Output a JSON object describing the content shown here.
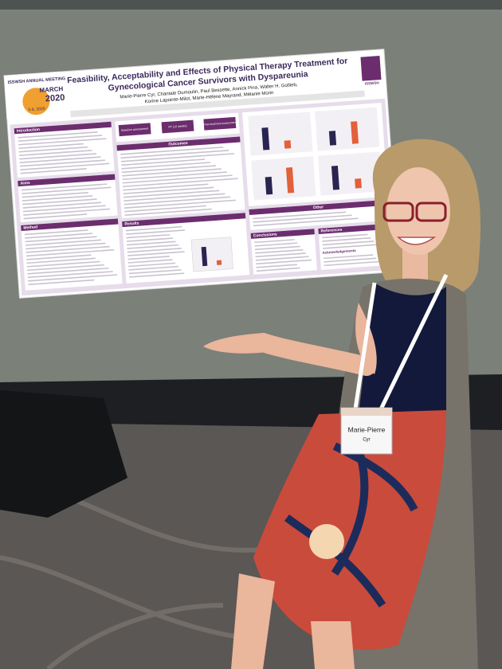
{
  "poster": {
    "meeting": "ISSWSH ANNUAL MEETING",
    "month": "MARCH",
    "year": "2020",
    "dates": "5-8, 2020",
    "logo": "ISSWSH",
    "title": [
      "Feasibility, Acceptability and Effects of Physical Therapy Treatment for",
      "Gynecological Cancer Survivors with Dyspareunia"
    ],
    "authors": [
      "Marie-Pierre Cyr, Chantale Dumoulin, Paul Bessette, Annick Pina, Walter H. Gotlieb,",
      "Korine Lapointe-Milot, Marie-Hélène Mayrand, Mélanie Morin"
    ],
    "sections": [
      "Introduction",
      "Aims",
      "Method",
      "Outcomes",
      "Results",
      "Other",
      "Conclusions",
      "References",
      "Acknowledgements"
    ],
    "flow": [
      "Baseline assessment",
      "PT (12 weeks)",
      "Post-treatment assessment"
    ]
  },
  "badge": {
    "first": "Marie-Pierre",
    "last": "Cyr"
  }
}
